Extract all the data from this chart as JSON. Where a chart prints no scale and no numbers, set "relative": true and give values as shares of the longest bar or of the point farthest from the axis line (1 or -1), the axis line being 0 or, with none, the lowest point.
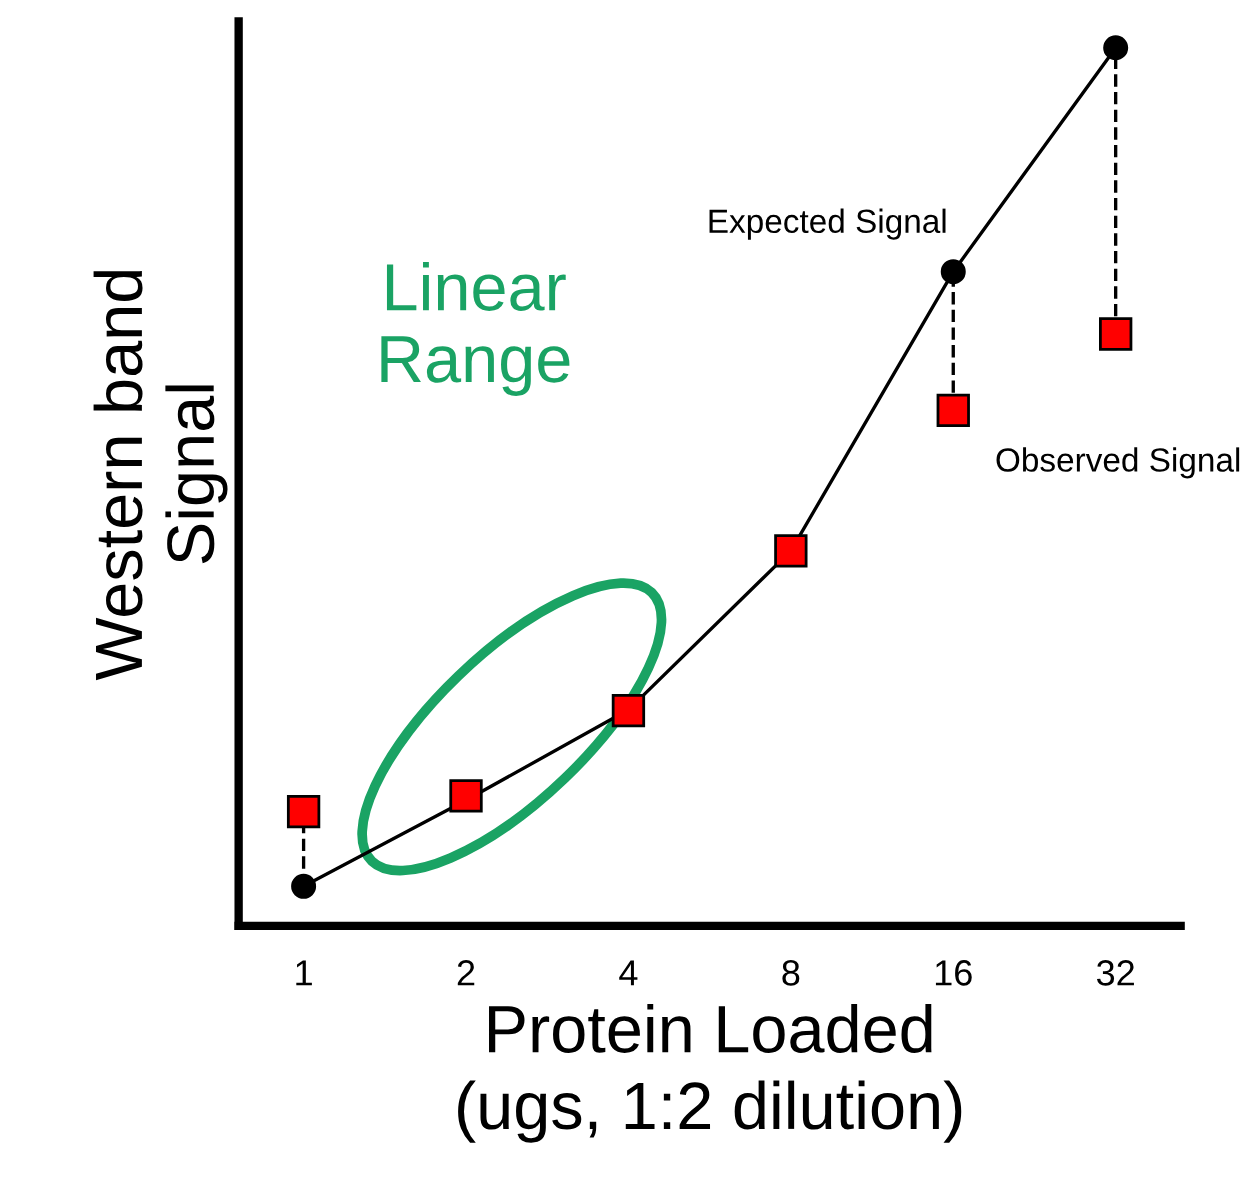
{
  "chart_data": {
    "type": "scatter",
    "relative": true,
    "xlabel": "Protein Loaded\n(ugs, 1:2 dilution)",
    "ylabel": "Western band\nSignal",
    "categories": [
      "1",
      "2",
      "4",
      "8",
      "16",
      "32"
    ],
    "series": [
      {
        "type": "line",
        "color": "#000000",
        "marker": "none",
        "line_style": "solid",
        "values": [
          0.045,
          0.143,
          0.246,
          0.427,
          0.745,
          1
        ]
      },
      {
        "color": "#000000",
        "marker": "circle",
        "values": [
          0.045,
          null,
          null,
          null,
          0.745,
          1
        ]
      },
      {
        "color": "#ff0000",
        "marker": "square",
        "values": [
          0.13,
          0.148,
          0.245,
          0.427,
          0.587,
          0.674
        ]
      },
      {
        "type": "line",
        "color": "#000000",
        "marker": "none",
        "line_style": "dashed",
        "x": [
          "1",
          "1"
        ],
        "values": [
          0.045,
          0.13
        ]
      },
      {
        "type": "line",
        "color": "#000000",
        "marker": "none",
        "line_style": "dashed",
        "x": [
          "16",
          "16"
        ],
        "values": [
          0.587,
          0.745
        ]
      },
      {
        "type": "line",
        "color": "#000000",
        "marker": "none",
        "line_style": "dashed",
        "x": [
          "32",
          "32"
        ],
        "values": [
          0.674,
          1
        ]
      }
    ],
    "annotations": [
      {
        "text": "Expected Signal",
        "x": "16",
        "y": 0.745
      },
      {
        "text": "Observed Signal",
        "x": "16",
        "y": 0.587
      },
      "Linear\nRange"
    ]
  }
}
